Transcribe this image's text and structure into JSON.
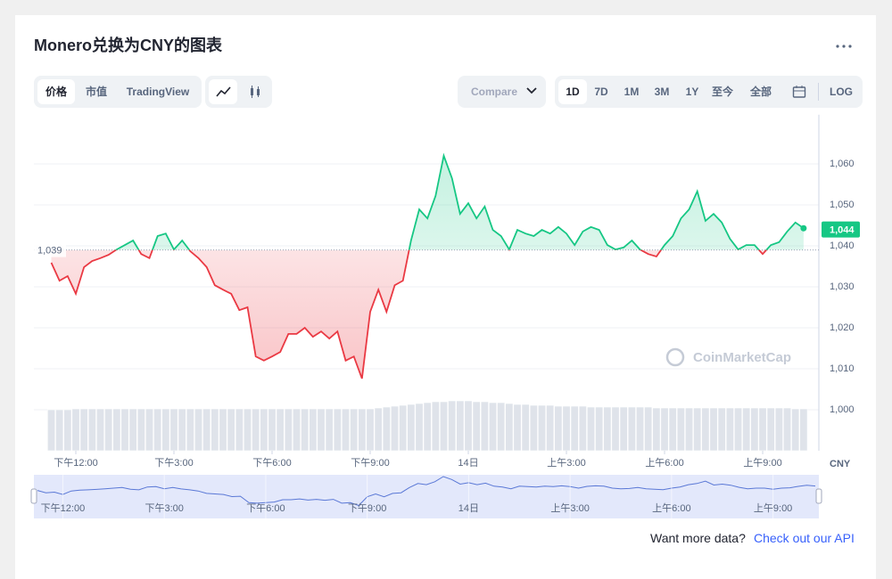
{
  "header": {
    "title": "Monero兑换为CNY的图表"
  },
  "toolbar": {
    "tabs": [
      "价格",
      "市值",
      "TradingView"
    ],
    "compare": "Compare",
    "ranges": [
      "1D",
      "7D",
      "1M",
      "3M",
      "1Y",
      "至今",
      "全部"
    ],
    "log": "LOG"
  },
  "chart_data": {
    "type": "line",
    "currency": "CNY",
    "watermark": "CoinMarketCap",
    "up_color": "#16c784",
    "down_color": "#ea3943",
    "grid": true,
    "values": [
      1035.9,
      1031.5,
      1032.6,
      1028.3,
      1034.8,
      1036.3,
      1037,
      1037.8,
      1039.1,
      1040.2,
      1041.3,
      1038,
      1037,
      1042.4,
      1043,
      1039.1,
      1041.3,
      1038.7,
      1037,
      1034.8,
      1030.4,
      1029.3,
      1028.3,
      1024.3,
      1025,
      1013,
      1012,
      1013,
      1014.1,
      1018.5,
      1018.5,
      1020,
      1017.8,
      1019.1,
      1017.4,
      1019.1,
      1012,
      1013,
      1007.6,
      1023.9,
      1029.3,
      1023.9,
      1030.4,
      1031.5,
      1041.3,
      1048.9,
      1046.7,
      1052.2,
      1062,
      1056.5,
      1047.8,
      1050.4,
      1046.7,
      1049.6,
      1043.9,
      1042.4,
      1039.1,
      1043.9,
      1043,
      1042.4,
      1043.9,
      1043,
      1044.6,
      1043,
      1040.2,
      1043.5,
      1044.6,
      1043.9,
      1040.2,
      1039.1,
      1039.6,
      1041.3,
      1039.1,
      1038,
      1037.4,
      1040.2,
      1042.4,
      1046.7,
      1048.9,
      1053.3,
      1046.1,
      1047.8,
      1045.7,
      1041.7,
      1039.1,
      1040.2,
      1040.2,
      1038,
      1040.2,
      1040.9,
      1043.5,
      1045.7,
      1044.3
    ],
    "volume": [
      46,
      46,
      46,
      47,
      47,
      47,
      47,
      47,
      47,
      47,
      47,
      47,
      47,
      47,
      47,
      47,
      47,
      47,
      47,
      47,
      47,
      47,
      47,
      47,
      47,
      47,
      47,
      47,
      47,
      47,
      47,
      47,
      47,
      47,
      47,
      47,
      47,
      47,
      47,
      47,
      48,
      49,
      50,
      51,
      52,
      53,
      54,
      55,
      55,
      56,
      56,
      56,
      55,
      55,
      54,
      54,
      53,
      52,
      52,
      51,
      51,
      51,
      50,
      50,
      50,
      50,
      49,
      49,
      49,
      49,
      49,
      49,
      49,
      49,
      48,
      48,
      48,
      48,
      48,
      48,
      48,
      48,
      48,
      48,
      48,
      48,
      48,
      48,
      48,
      48,
      48,
      47,
      47
    ],
    "baseline": {
      "value": 1039,
      "label": "1,039"
    },
    "last_price": {
      "value": 1044,
      "label": "1,044"
    },
    "ylim": [
      990,
      1072
    ],
    "yticks": [
      {
        "value": 1000,
        "label": "1,000"
      },
      {
        "value": 1010,
        "label": "1,010"
      },
      {
        "value": 1020,
        "label": "1,020"
      },
      {
        "value": 1030,
        "label": "1,030"
      },
      {
        "value": 1040,
        "label": "1,040"
      },
      {
        "value": 1050,
        "label": "1,050"
      },
      {
        "value": 1060,
        "label": "1,060"
      }
    ],
    "xticks": [
      {
        "value": 3,
        "label": "下午12:00"
      },
      {
        "value": 15,
        "label": "下午3:00"
      },
      {
        "value": 27,
        "label": "下午6:00"
      },
      {
        "value": 39,
        "label": "下午9:00"
      },
      {
        "value": 51,
        "label": "14日"
      },
      {
        "value": 63,
        "label": "上午3:00"
      },
      {
        "value": 75,
        "label": "上午6:00"
      },
      {
        "value": 87,
        "label": "上午9:00"
      }
    ]
  },
  "footer": {
    "text": "Want more data?",
    "link": "Check out our API"
  }
}
